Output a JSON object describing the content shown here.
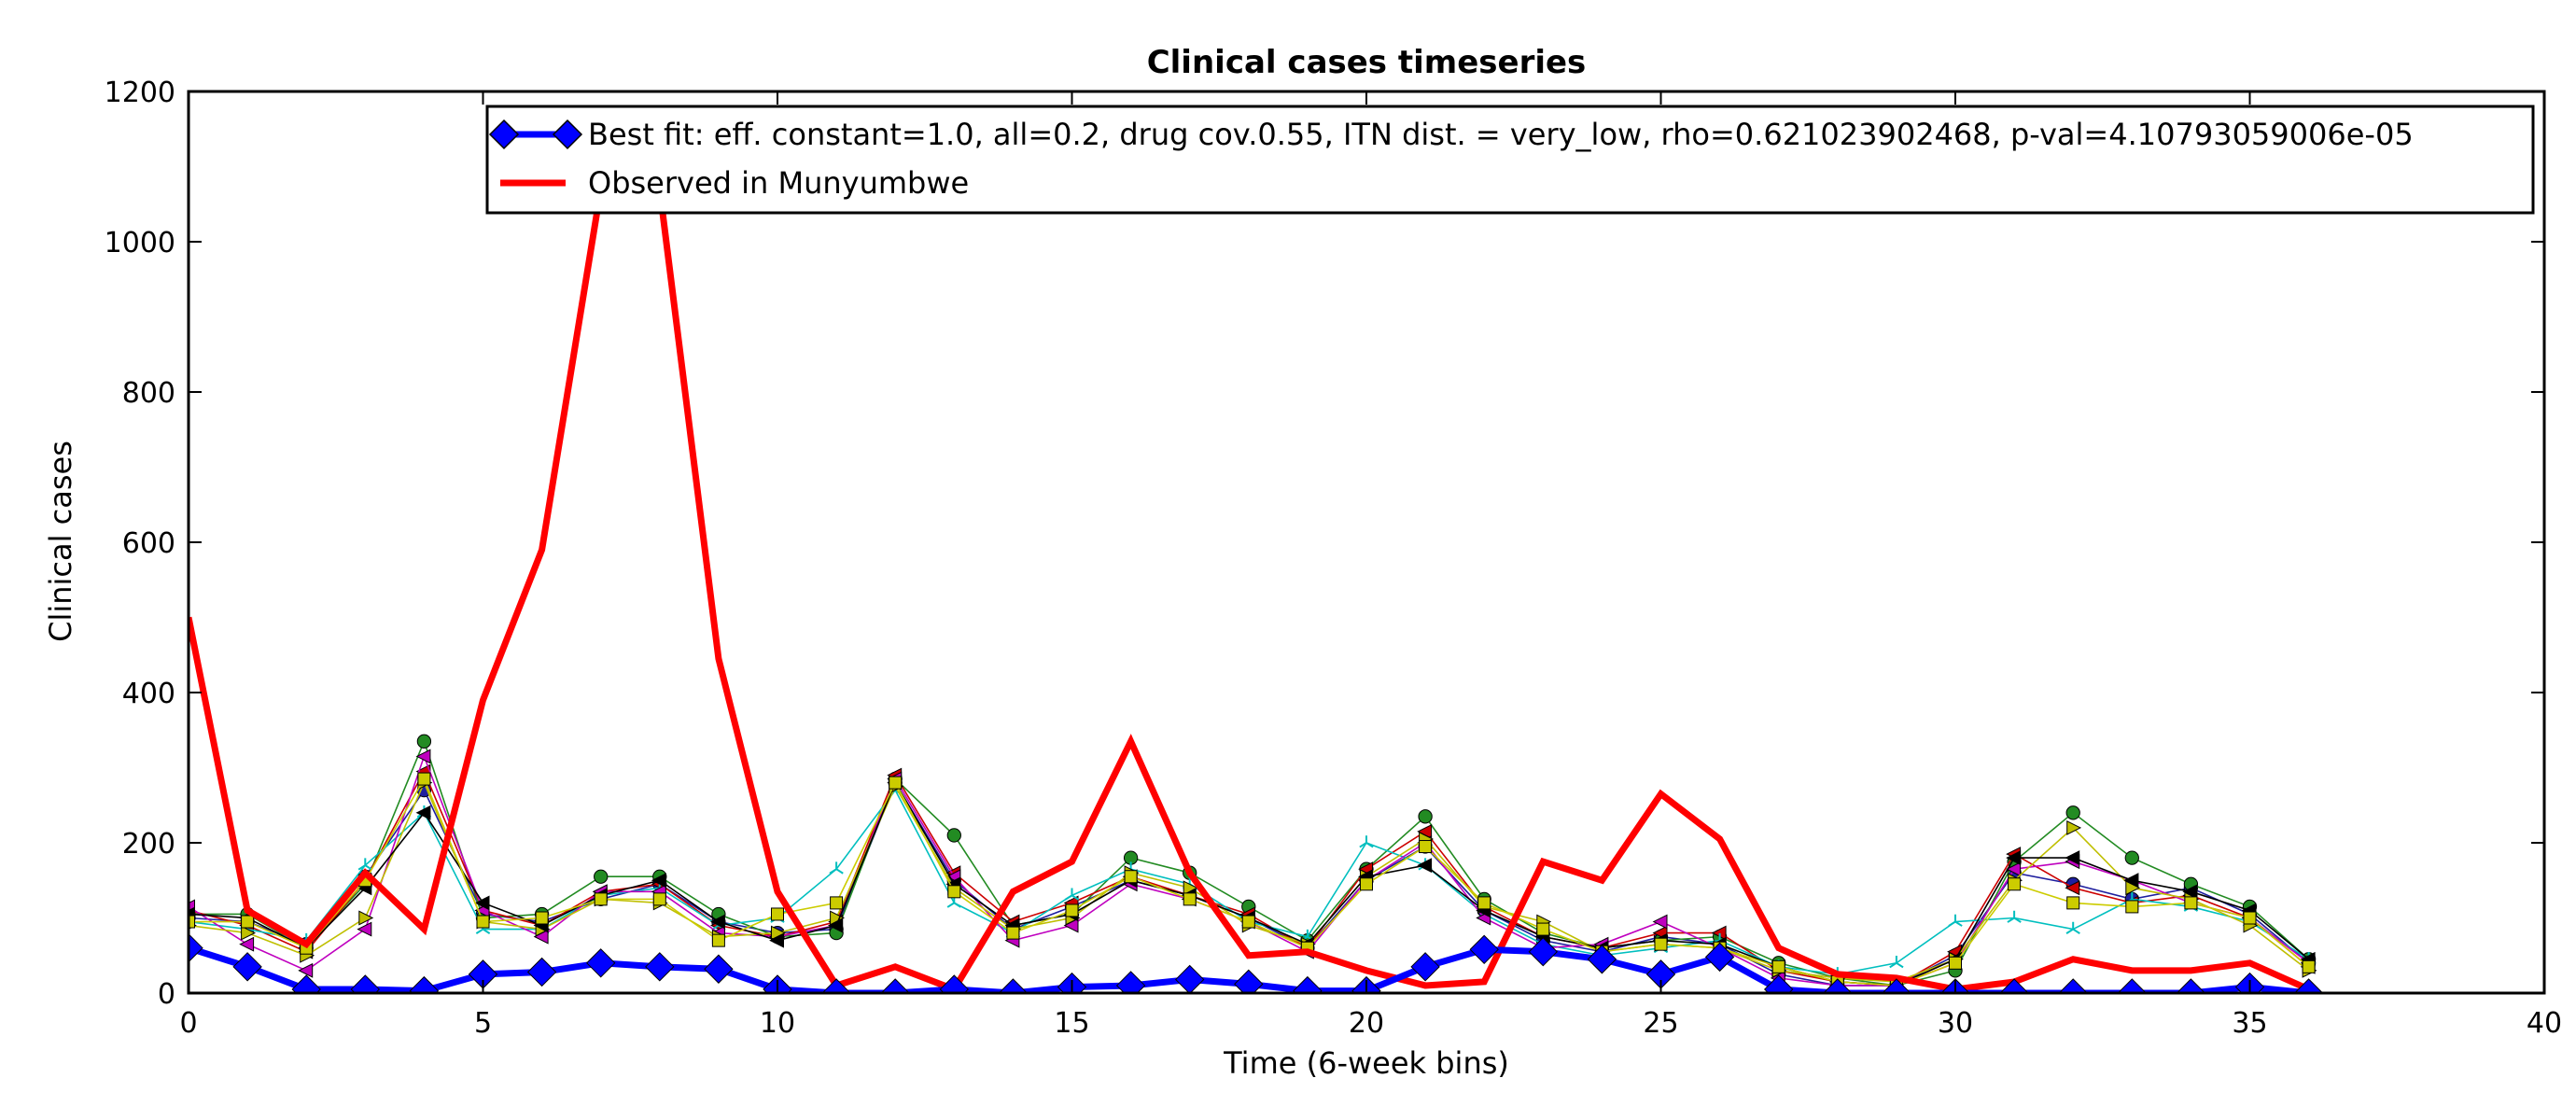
{
  "chart_data": {
    "type": "line",
    "title": "Clinical cases timeseries",
    "xlabel": "Time (6-week bins)",
    "ylabel": "Clinical cases",
    "xlim": [
      0,
      40
    ],
    "ylim": [
      0,
      1200
    ],
    "xticks": [
      0,
      5,
      10,
      15,
      20,
      25,
      30,
      35,
      40
    ],
    "yticks": [
      0,
      200,
      400,
      600,
      800,
      1000,
      1200
    ],
    "grid": false,
    "legend_position": "top-right",
    "series": [
      {
        "name": "Best fit: eff. constant=1.0, all=0.2, drug cov.0.55, ITN dist. = very_low, rho=0.621023902468, p-val=4.10793059006e-05",
        "color": "#0000ff",
        "marker": "diamond",
        "x": [
          0,
          1,
          2,
          3,
          4,
          5,
          6,
          7,
          8,
          9,
          10,
          11,
          12,
          13,
          14,
          15,
          16,
          17,
          18,
          19,
          20,
          21,
          22,
          23,
          24,
          25,
          26,
          27,
          28,
          29,
          30,
          31,
          32,
          33,
          34,
          35,
          36
        ],
        "values": [
          60,
          35,
          5,
          5,
          3,
          25,
          28,
          40,
          35,
          32,
          5,
          0,
          0,
          5,
          0,
          8,
          10,
          18,
          12,
          3,
          3,
          35,
          58,
          55,
          45,
          25,
          48,
          5,
          0,
          0,
          0,
          0,
          0,
          0,
          0,
          8,
          0
        ]
      },
      {
        "name": "Observed in Munyumbwe",
        "color": "#ff0000",
        "marker": "none",
        "x": [
          0,
          1,
          2,
          3,
          4,
          5,
          6,
          7,
          8,
          9,
          10,
          11,
          12,
          13,
          14,
          15,
          16,
          17,
          18,
          19,
          20,
          21,
          22,
          23,
          24,
          25,
          26,
          27,
          28,
          29,
          30,
          31,
          32,
          33,
          34,
          35,
          36
        ],
        "values": [
          500,
          110,
          65,
          160,
          85,
          390,
          590,
          1070,
          1070,
          445,
          135,
          10,
          35,
          5,
          135,
          175,
          335,
          160,
          50,
          55,
          30,
          10,
          15,
          175,
          150,
          265,
          205,
          60,
          25,
          20,
          5,
          15,
          45,
          30,
          30,
          40,
          5
        ]
      }
    ],
    "background_series": [
      {
        "color": "#1f1f9f",
        "marker": "circle",
        "values": [
          100,
          95,
          65,
          155,
          270,
          105,
          95,
          125,
          145,
          95,
          80,
          85,
          280,
          150,
          85,
          115,
          150,
          130,
          100,
          60,
          150,
          195,
          110,
          70,
          55,
          75,
          65,
          25,
          10,
          10,
          50,
          160,
          145,
          125,
          140,
          105,
          40
        ]
      },
      {
        "color": "#228b22",
        "marker": "circle",
        "values": [
          105,
          105,
          60,
          145,
          335,
          100,
          105,
          155,
          155,
          105,
          75,
          80,
          285,
          210,
          90,
          105,
          180,
          160,
          115,
          70,
          165,
          235,
          125,
          80,
          60,
          70,
          75,
          40,
          20,
          10,
          30,
          175,
          240,
          180,
          145,
          115,
          45
        ]
      },
      {
        "color": "#cc0000",
        "marker": "left-triangle",
        "values": [
          110,
          90,
          55,
          150,
          295,
          110,
          90,
          135,
          145,
          90,
          75,
          95,
          290,
          160,
          95,
          120,
          155,
          130,
          105,
          60,
          165,
          215,
          115,
          75,
          60,
          80,
          80,
          30,
          15,
          10,
          55,
          185,
          140,
          120,
          130,
          100,
          35
        ]
      },
      {
        "color": "#00bfbf",
        "marker": "tri",
        "values": [
          95,
          85,
          70,
          170,
          240,
          85,
          85,
          130,
          140,
          90,
          100,
          165,
          270,
          120,
          80,
          130,
          165,
          145,
          95,
          75,
          200,
          170,
          105,
          65,
          50,
          60,
          70,
          35,
          25,
          40,
          95,
          100,
          85,
          125,
          115,
          95,
          45
        ]
      },
      {
        "color": "#bf00bf",
        "marker": "left-triangle",
        "values": [
          115,
          65,
          30,
          85,
          315,
          110,
          75,
          135,
          135,
          80,
          75,
          90,
          285,
          155,
          70,
          90,
          145,
          125,
          95,
          55,
          150,
          200,
          100,
          60,
          65,
          95,
          60,
          20,
          10,
          10,
          40,
          165,
          175,
          150,
          120,
          100,
          40
        ]
      },
      {
        "color": "#bfbf00",
        "marker": "right-triangle",
        "values": [
          90,
          80,
          50,
          100,
          280,
          95,
          85,
          125,
          120,
          75,
          80,
          100,
          275,
          140,
          85,
          100,
          160,
          140,
          90,
          65,
          155,
          205,
          115,
          95,
          55,
          65,
          60,
          30,
          20,
          15,
          45,
          150,
          220,
          140,
          125,
          90,
          30
        ]
      },
      {
        "color": "#000000",
        "marker": "left-triangle",
        "values": [
          105,
          100,
          60,
          140,
          240,
          120,
          90,
          130,
          150,
          95,
          70,
          90,
          280,
          145,
          90,
          105,
          150,
          130,
          100,
          65,
          155,
          170,
          110,
          75,
          60,
          70,
          65,
          35,
          15,
          10,
          45,
          180,
          180,
          150,
          135,
          110,
          45
        ]
      },
      {
        "color": "#cccc00",
        "marker": "square",
        "values": [
          95,
          95,
          60,
          150,
          285,
          95,
          100,
          125,
          125,
          70,
          105,
          120,
          280,
          135,
          80,
          110,
          155,
          125,
          95,
          60,
          145,
          195,
          120,
          85,
          55,
          65,
          60,
          35,
          15,
          10,
          40,
          145,
          120,
          115,
          120,
          100,
          35
        ]
      }
    ]
  }
}
